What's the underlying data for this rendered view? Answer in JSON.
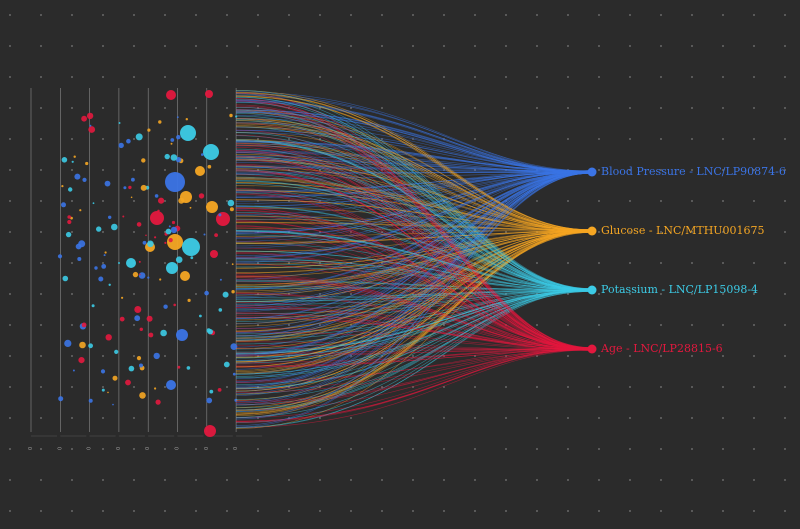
{
  "colors": {
    "background": "#2b2b2b",
    "grid_dot": "#7a7a7a",
    "axis_line": "#8a8a8a"
  },
  "targets": [
    {
      "label": "Blood Pressure - LNC/LP90874-6",
      "color": "#3b74e6"
    },
    {
      "label": "Glucose - LNC/MTHU001675",
      "color": "#f5a623"
    },
    {
      "label": "Potassium - LNC/LP15098-4",
      "color": "#3ccbe6"
    },
    {
      "label": "Age - LNC/LP28815-6",
      "color": "#e3183e"
    }
  ],
  "axis_ticks": [
    "0",
    "0",
    "0",
    "0",
    "0",
    "0",
    "0",
    "0"
  ],
  "column_count": 8
}
